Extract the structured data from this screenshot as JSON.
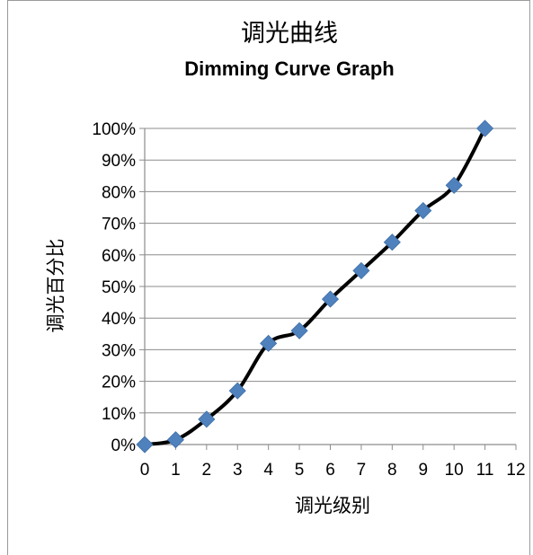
{
  "chart_data": {
    "type": "line",
    "title": "调光曲线",
    "subtitle": "Dimming Curve Graph",
    "xlabel": "调光级别",
    "ylabel": "调光百分比",
    "x": [
      0,
      1,
      2,
      3,
      4,
      5,
      6,
      7,
      8,
      9,
      10,
      11
    ],
    "series": [
      {
        "values": [
          0,
          1.5,
          8,
          17,
          32,
          36,
          46,
          55,
          64,
          74,
          82,
          100
        ]
      }
    ],
    "xlim": [
      0,
      12
    ],
    "ylim": [
      0,
      100
    ],
    "x_ticks": [
      "0",
      "1",
      "2",
      "3",
      "4",
      "5",
      "6",
      "7",
      "8",
      "9",
      "10",
      "11",
      "12"
    ],
    "y_ticks": [
      "0%",
      "10%",
      "20%",
      "30%",
      "40%",
      "50%",
      "60%",
      "70%",
      "80%",
      "90%",
      "100%"
    ],
    "grid": "horizontal",
    "line_color": "#000000",
    "marker_color": "#4f81bd",
    "marker": "diamond"
  }
}
